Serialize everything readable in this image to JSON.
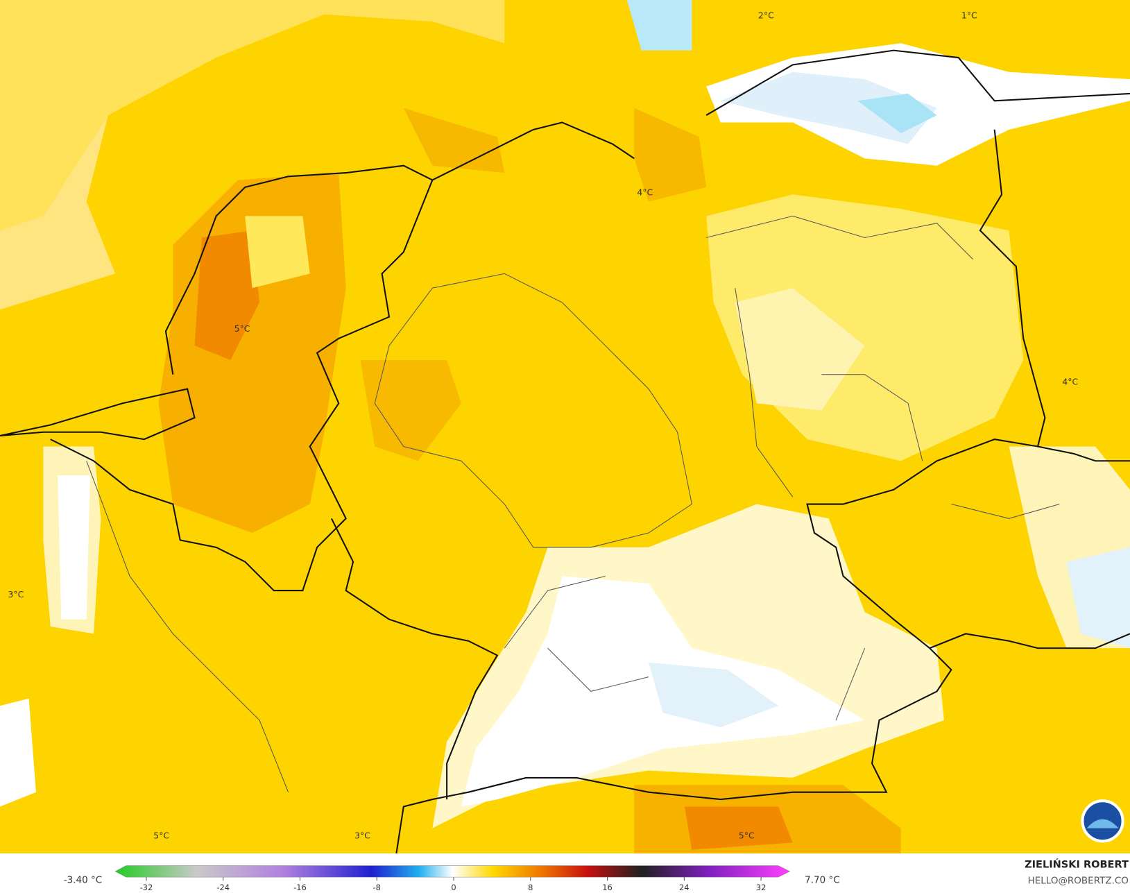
{
  "map": {
    "labels": [
      "2°C",
      "1°C",
      "4°C",
      "5°C",
      "4°C",
      "3°C",
      "5°C",
      "3°C",
      "5°C"
    ],
    "colorbar": {
      "min_label": "-3.40 °C",
      "max_label": "7.70 °C",
      "ticks": [
        -32,
        -24,
        -16,
        -8,
        0,
        8,
        16,
        24,
        32
      ]
    },
    "credit": {
      "author": "ZIELIŃSKI ROBERT",
      "email": "HELLO@ROBERTZ.CO"
    }
  }
}
